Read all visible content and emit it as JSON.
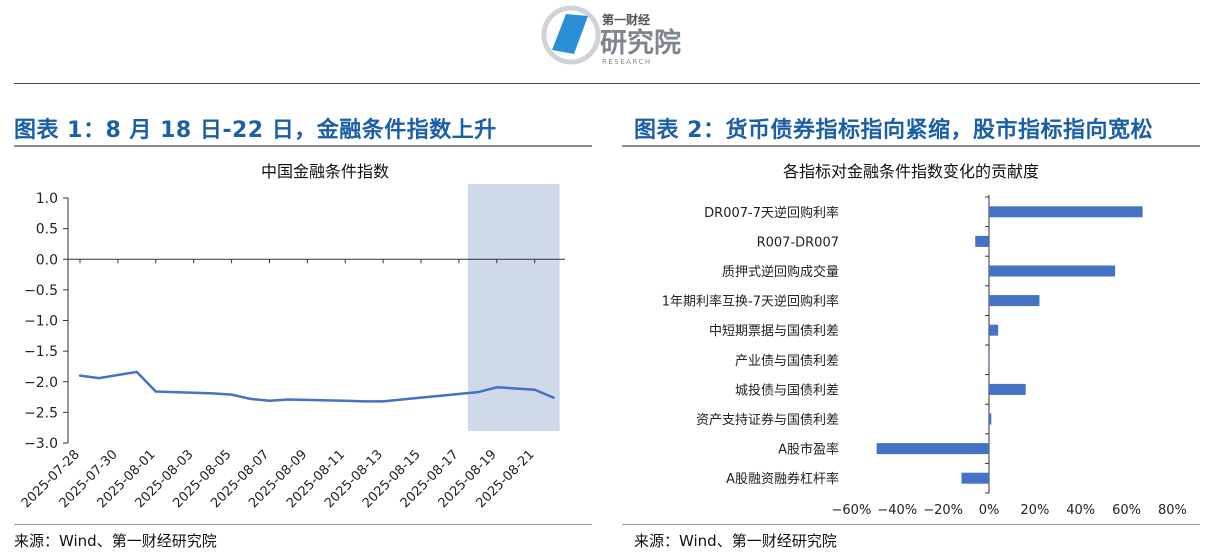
{
  "header": {
    "logo_small": "第一财经",
    "logo_big": "研究院",
    "logo_sub": "RESEARCH"
  },
  "left": {
    "panel_title": "图表 1：8 月 18 日-22 日，金融条件指数上升",
    "chart_title": "中国金融条件指数",
    "source": "来源：Wind、第一财经研究院"
  },
  "right": {
    "panel_title": "图表 2：货币债券指标指向紧缩，股市指标指向宽松",
    "chart_title": "各指标对金融条件指数变化的贡献度",
    "source": "来源：Wind、第一财经研究院"
  },
  "colors": {
    "title_blue": "#1b5fa8",
    "series": "#4472c4",
    "highlight": "#cfd9ea"
  },
  "chart_data": [
    {
      "type": "line",
      "title": "中国金融条件指数",
      "x": [
        "2025-07-28",
        "2025-07-29",
        "2025-07-30",
        "2025-07-31",
        "2025-08-01",
        "2025-08-04",
        "2025-08-05",
        "2025-08-06",
        "2025-08-07",
        "2025-08-08",
        "2025-08-11",
        "2025-08-12",
        "2025-08-13",
        "2025-08-14",
        "2025-08-15",
        "2025-08-18",
        "2025-08-19",
        "2025-08-20",
        "2025-08-21",
        "2025-08-22"
      ],
      "y": [
        -1.9,
        -1.94,
        -1.89,
        -1.84,
        -2.16,
        -2.19,
        -2.21,
        -2.28,
        -2.31,
        -2.29,
        -2.31,
        -2.32,
        -2.32,
        -2.29,
        -2.26,
        -2.17,
        -2.09,
        -2.11,
        -2.13,
        -2.26
      ],
      "x_tick_labels": [
        "2025-07-28",
        "2025-07-30",
        "2025-08-01",
        "2025-08-03",
        "2025-08-05",
        "2025-08-07",
        "2025-08-09",
        "2025-08-11",
        "2025-08-13",
        "2025-08-15",
        "2025-08-17",
        "2025-08-19",
        "2025-08-21"
      ],
      "y_tick_labels": [
        "1.0",
        "0.5",
        "0.0",
        "−0.5",
        "−1.0",
        "−1.5",
        "−2.0",
        "−2.5",
        "−3.0"
      ],
      "ylim": [
        -3.0,
        1.0
      ],
      "highlight_range": [
        "2025-08-18",
        "2025-08-22"
      ],
      "grid": false
    },
    {
      "type": "bar",
      "orientation": "horizontal",
      "title": "各指标对金融条件指数变化的贡献度",
      "categories": [
        "DR007-7天逆回购利率",
        "R007-DR007",
        "质押式逆回购成交量",
        "1年期利率互换-7天逆回购利率",
        "中短期票据与国债利差",
        "产业债与国债利差",
        "城投债与国债利差",
        "资产支持证券与国债利差",
        "A股市盈率",
        "A股融资融券杠杆率"
      ],
      "values": [
        0.67,
        -0.06,
        0.55,
        0.22,
        0.04,
        0.0,
        0.16,
        0.01,
        -0.49,
        -0.12
      ],
      "x_tick_labels": [
        "−60%",
        "−40%",
        "−20%",
        "0%",
        "20%",
        "40%",
        "60%",
        "80%"
      ],
      "xlim": [
        -0.6,
        0.8
      ],
      "grid": false
    }
  ]
}
